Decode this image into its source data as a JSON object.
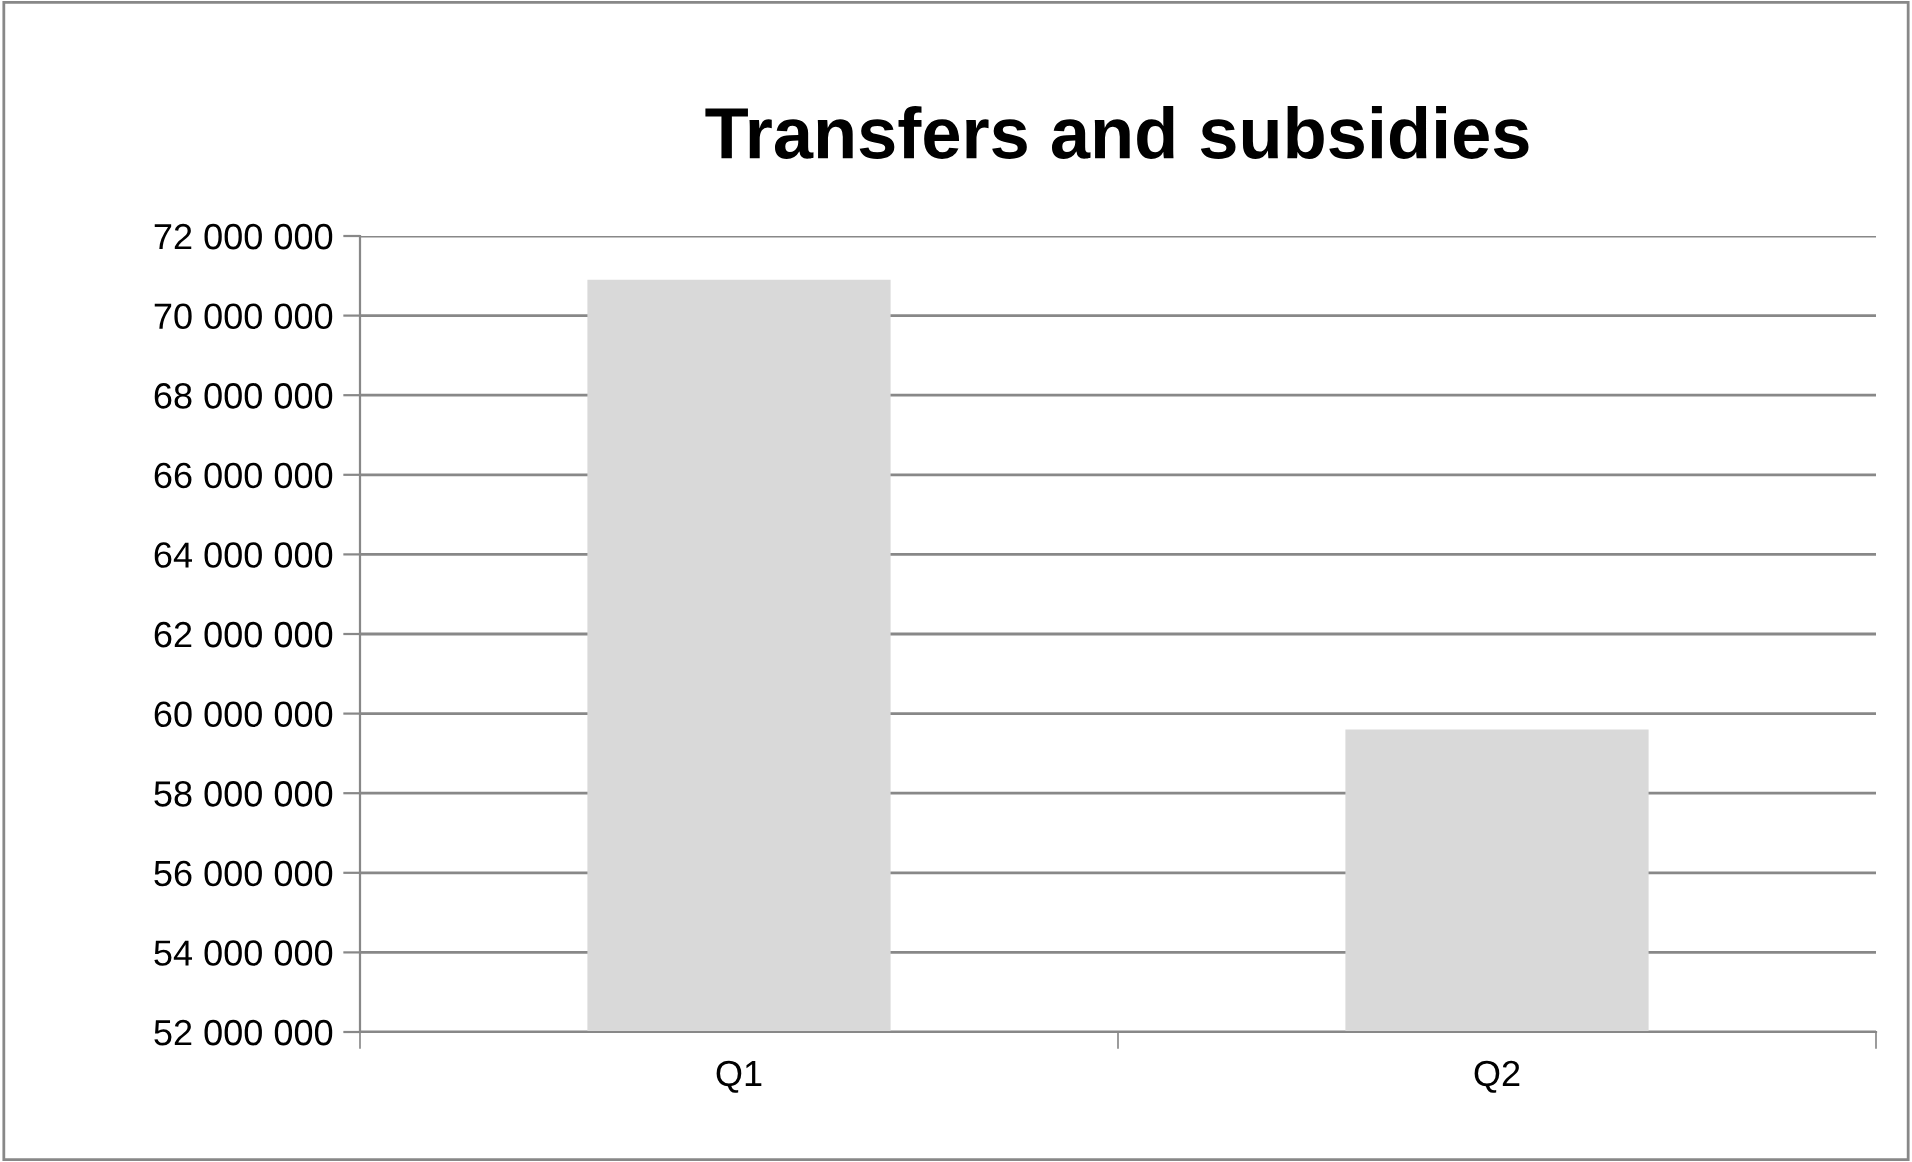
{
  "chart_data": {
    "type": "bar",
    "title": "Transfers and subsidies",
    "categories": [
      "Q1",
      "Q2"
    ],
    "series": [
      {
        "color": "#d9d9d9",
        "values": [
          70900000,
          59600000
        ]
      }
    ],
    "ylim": [
      52000000,
      72000000
    ],
    "yticks": [
      {
        "value": 52000000,
        "label": "52 000 000"
      },
      {
        "value": 54000000,
        "label": "54 000 000"
      },
      {
        "value": 56000000,
        "label": "56 000 000"
      },
      {
        "value": 58000000,
        "label": "58 000 000"
      },
      {
        "value": 60000000,
        "label": "60 000 000"
      },
      {
        "value": 62000000,
        "label": "62 000 000"
      },
      {
        "value": 64000000,
        "label": "64 000 000"
      },
      {
        "value": 66000000,
        "label": "66 000 000"
      },
      {
        "value": 68000000,
        "label": "68 000 000"
      },
      {
        "value": 70000000,
        "label": "70 000 000"
      },
      {
        "value": 72000000,
        "label": "72 000 000"
      }
    ],
    "grid": "y",
    "legend": false
  }
}
